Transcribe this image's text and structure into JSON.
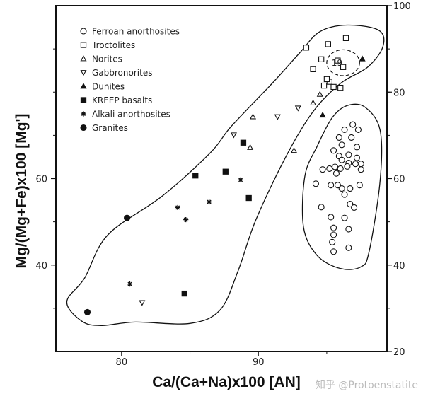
{
  "chart_data": {
    "type": "scatter",
    "xlabel": "Ca/(Ca+Na)x100 [AN]",
    "ylabel": "Mg/(Mg+Fe)x100 [Mg']",
    "xlim": [
      75.2,
      99.4
    ],
    "ylim": [
      20.0,
      100.0
    ],
    "left_ticks": [
      {
        "value": 60,
        "label": "60"
      },
      {
        "value": 40,
        "label": "40"
      }
    ],
    "right_ticks": [
      {
        "value": 100,
        "label": "100"
      },
      {
        "value": 80,
        "label": "80"
      },
      {
        "value": 60,
        "label": "60"
      },
      {
        "value": 40,
        "label": "40"
      },
      {
        "value": 20,
        "label": "20"
      }
    ],
    "x_ticks": [
      {
        "value": 80,
        "label": "80"
      },
      {
        "value": 90,
        "label": "90"
      }
    ],
    "annotation": "19",
    "watermark": "知乎 @Protoenstatite",
    "series": [
      {
        "name": "Ferroan anorthosites",
        "marker": "circle-open",
        "points": [
          [
            96.9,
            72.5
          ],
          [
            96.3,
            71.3
          ],
          [
            97.3,
            71.3
          ],
          [
            95.9,
            69.5
          ],
          [
            96.8,
            69.5
          ],
          [
            96.1,
            67.8
          ],
          [
            97.2,
            67.3
          ],
          [
            95.5,
            66.5
          ],
          [
            95.9,
            65.2
          ],
          [
            96.6,
            65.5
          ],
          [
            97.2,
            64.8
          ],
          [
            96.1,
            64.3
          ],
          [
            96.6,
            63.6
          ],
          [
            97.1,
            63.4
          ],
          [
            97.5,
            63.4
          ],
          [
            94.7,
            62.1
          ],
          [
            95.2,
            62.3
          ],
          [
            95.6,
            62.7
          ],
          [
            96.0,
            62.3
          ],
          [
            96.5,
            62.8
          ],
          [
            97.5,
            62.1
          ],
          [
            95.7,
            61.2
          ],
          [
            94.2,
            58.8
          ],
          [
            95.3,
            58.5
          ],
          [
            95.8,
            58.5
          ],
          [
            96.1,
            57.7
          ],
          [
            96.7,
            57.7
          ],
          [
            97.4,
            58.5
          ],
          [
            96.3,
            56.3
          ],
          [
            96.7,
            54.1
          ],
          [
            97.0,
            53.3
          ],
          [
            94.6,
            53.4
          ],
          [
            95.3,
            51.1
          ],
          [
            96.3,
            50.9
          ],
          [
            95.5,
            48.6
          ],
          [
            96.6,
            48.3
          ],
          [
            95.5,
            47.0
          ],
          [
            95.4,
            45.3
          ],
          [
            96.6,
            44.0
          ],
          [
            95.5,
            43.1
          ]
        ]
      },
      {
        "name": "Troctolites",
        "marker": "square-open",
        "points": [
          [
            93.5,
            90.3
          ],
          [
            95.1,
            91.1
          ],
          [
            96.4,
            92.5
          ],
          [
            94.6,
            87.6
          ],
          [
            95.8,
            87.3
          ],
          [
            96.2,
            85.8
          ],
          [
            94.0,
            85.3
          ],
          [
            95.2,
            82.4
          ],
          [
            94.8,
            81.5
          ],
          [
            95.5,
            81.2
          ],
          [
            95.0,
            83.0
          ],
          [
            96.0,
            81.0
          ]
        ]
      },
      {
        "name": "Norites",
        "marker": "triangle-open",
        "points": [
          [
            89.6,
            74.3
          ],
          [
            89.4,
            67.2
          ],
          [
            92.6,
            66.5
          ],
          [
            94.0,
            77.5
          ],
          [
            94.5,
            79.5
          ]
        ]
      },
      {
        "name": "Gabbronorites",
        "marker": "triangle-down-open",
        "points": [
          [
            88.2,
            70.1
          ],
          [
            91.4,
            74.3
          ],
          [
            92.9,
            76.3
          ],
          [
            81.5,
            31.3
          ]
        ]
      },
      {
        "name": "Dunites",
        "marker": "triangle-filled",
        "points": [
          [
            97.6,
            87.7
          ],
          [
            94.7,
            74.7
          ]
        ]
      },
      {
        "name": "KREEP basalts",
        "marker": "square-filled",
        "points": [
          [
            88.9,
            68.3
          ],
          [
            85.4,
            60.7
          ],
          [
            87.6,
            61.6
          ],
          [
            89.3,
            55.5
          ],
          [
            84.6,
            33.4
          ]
        ]
      },
      {
        "name": "Alkali anorthosites",
        "marker": "asterisk",
        "points": [
          [
            88.7,
            59.7
          ],
          [
            86.4,
            54.6
          ],
          [
            84.1,
            53.3
          ],
          [
            84.7,
            50.5
          ],
          [
            80.6,
            35.6
          ]
        ]
      },
      {
        "name": "Granites",
        "marker": "circle-filled",
        "points": [
          [
            80.4,
            50.9
          ],
          [
            77.5,
            29.1
          ]
        ]
      }
    ],
    "envelopes": [
      {
        "name": "main-field",
        "points": [
          [
            77.1,
            27.0
          ],
          [
            76.0,
            31.5
          ],
          [
            77.3,
            37.0
          ],
          [
            79.0,
            47.0
          ],
          [
            83.0,
            56.0
          ],
          [
            86.5,
            66.0
          ],
          [
            88.0,
            72.0
          ],
          [
            91.0,
            82.0
          ],
          [
            93.0,
            89.0
          ],
          [
            94.5,
            94.0
          ],
          [
            96.5,
            95.5
          ],
          [
            98.8,
            94.3
          ],
          [
            99.1,
            90.5
          ],
          [
            98.0,
            85.8
          ],
          [
            96.0,
            82.0
          ],
          [
            94.0,
            75.5
          ],
          [
            92.0,
            65.0
          ],
          [
            89.8,
            50.3
          ],
          [
            88.5,
            38.5
          ],
          [
            87.2,
            29.6
          ],
          [
            85.0,
            26.5
          ],
          [
            81.0,
            26.8
          ],
          [
            78.5,
            26.0
          ]
        ]
      },
      {
        "name": "ferroan-field",
        "points": [
          [
            96.5,
            76.9
          ],
          [
            97.8,
            76.5
          ],
          [
            98.9,
            71.2
          ],
          [
            98.9,
            59.5
          ],
          [
            98.1,
            43.2
          ],
          [
            97.5,
            39.6
          ],
          [
            96.0,
            39.2
          ],
          [
            94.3,
            42.2
          ],
          [
            93.3,
            48.8
          ],
          [
            93.4,
            60.6
          ],
          [
            94.3,
            67.5
          ],
          [
            95.4,
            74.1
          ]
        ]
      },
      {
        "name": "cluster-19",
        "shape": "ellipse",
        "center": [
          96.2,
          86.8
        ],
        "radii": [
          1.2,
          3.0
        ],
        "dashed": true
      }
    ]
  },
  "legend": [
    {
      "marker": "circle-open",
      "label": "Ferroan anorthosites"
    },
    {
      "marker": "square-open",
      "label": "Troctolites"
    },
    {
      "marker": "triangle-open",
      "label": "Norites"
    },
    {
      "marker": "triangle-down-open",
      "label": "Gabbronorites"
    },
    {
      "marker": "triangle-filled",
      "label": "Dunites"
    },
    {
      "marker": "square-filled",
      "label": "KREEP basalts"
    },
    {
      "marker": "asterisk",
      "label": "Alkali anorthosites"
    },
    {
      "marker": "circle-filled",
      "label": "Granites"
    }
  ]
}
